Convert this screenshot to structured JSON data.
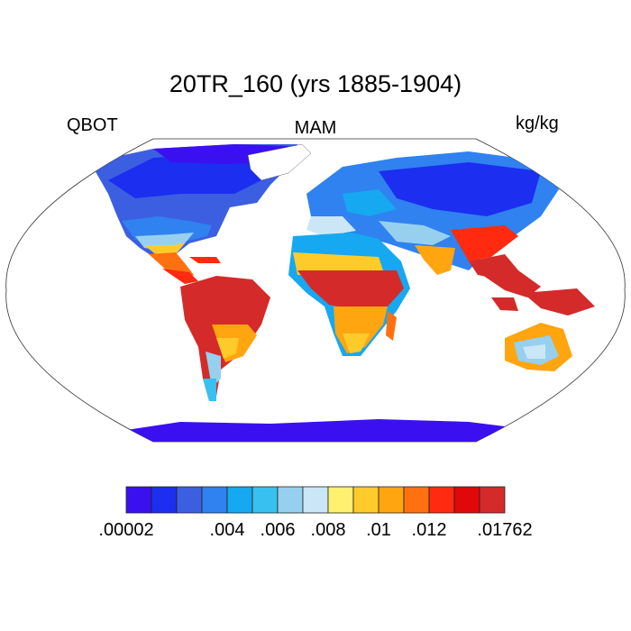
{
  "title": "20TR_160 (yrs 1885-1904)",
  "left_label": "QBOT",
  "center_label": "MAM",
  "right_label": "kg/kg",
  "colorbar": {
    "colors": [
      "#3b10f0",
      "#1c2ef0",
      "#3c5ee0",
      "#2f82f0",
      "#16a8f0",
      "#38c0f0",
      "#96d0ee",
      "#cbe7f7",
      "#fff070",
      "#ffcb2b",
      "#ffa510",
      "#ff7110",
      "#ff2a10",
      "#e00808",
      "#d42a2a"
    ],
    "tick_labels": [
      {
        "text": ".00002",
        "boundary": 0
      },
      {
        "text": ".004",
        "boundary": 4
      },
      {
        "text": ".006",
        "boundary": 6
      },
      {
        "text": ".008",
        "boundary": 8
      },
      {
        "text": ".01",
        "boundary": 10
      },
      {
        "text": ".012",
        "boundary": 12
      },
      {
        "text": ".01762",
        "boundary": 15
      }
    ]
  }
}
